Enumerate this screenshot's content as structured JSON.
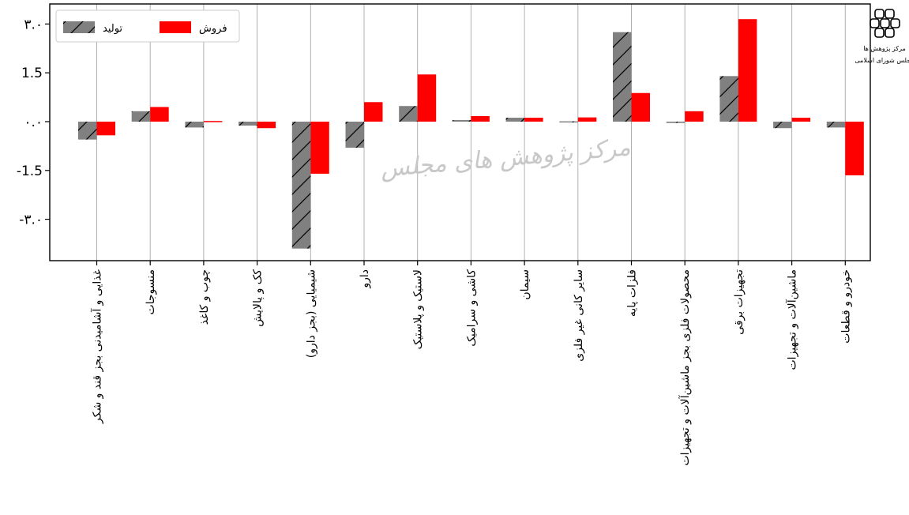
{
  "chart_data": {
    "type": "bar",
    "categories": [
      "غذایی و آشامیدنی بجز قند و شکر",
      "منسوجات",
      "چوب و کاغذ",
      "کک و پالایش",
      "شیمیایی (بجز دارو)",
      "دارو",
      "لاستیک و پلاستیک",
      "کاشی و سرامیک",
      "سیمان",
      "سایر کانی غیر فلزی",
      "فلزات پایه",
      "محصولات فلزی بجز ماشین‌آلات و تجهیزات",
      "تجهیزات برقی",
      "ماشین‌آلات و تجهیزات",
      "خودرو و قطعات"
    ],
    "series": [
      {
        "name": "تولید",
        "values": [
          -0.55,
          0.32,
          -0.18,
          -0.12,
          -3.9,
          -0.8,
          0.48,
          0.05,
          0.12,
          0.01,
          2.75,
          -0.04,
          1.4,
          -0.2,
          -0.18
        ]
      },
      {
        "name": "فروش",
        "values": [
          -0.42,
          0.45,
          0.02,
          -0.2,
          -1.6,
          0.6,
          1.45,
          0.17,
          0.12,
          0.13,
          0.88,
          0.32,
          3.15,
          0.12,
          -1.65
        ]
      }
    ],
    "yticks": [
      -3.0,
      -1.5,
      0.0,
      1.5,
      3.0
    ],
    "ytick_labels": [
      "-۳.۰",
      "-1.5",
      "۰.۰",
      "1.5",
      "۳.۰"
    ],
    "ylim": [
      -4.2,
      3.4
    ],
    "grid": "vertical",
    "legend_position": "top-left",
    "colors": {
      "production": "#808080",
      "sales": "#ff0000"
    }
  },
  "watermark": "مرکز پژوهش های مجلس",
  "logo_text": [
    "مرکز پژوهش ها",
    "مجلس شورای اسلامی"
  ]
}
